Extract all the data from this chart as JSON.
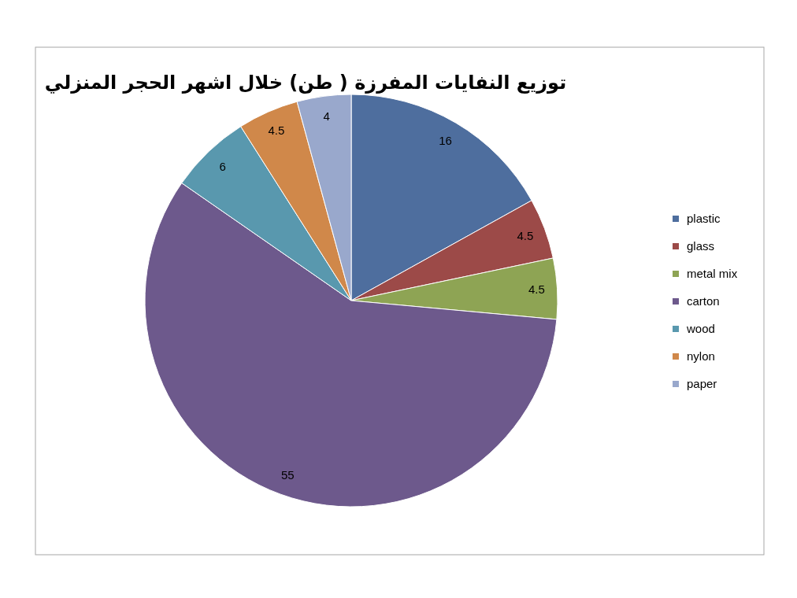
{
  "chart_data": {
    "type": "pie",
    "title": "توزيع النفايات المفرزة ( طن) خلال اشهر الحجر المنزلي",
    "categories": [
      "plastic",
      "glass",
      "metal mix",
      "carton",
      "wood",
      "nylon",
      "paper"
    ],
    "values": [
      16,
      4.5,
      4.5,
      55,
      6,
      4.5,
      4
    ],
    "colors": [
      "#4e6e9e",
      "#9c4a48",
      "#8ea454",
      "#6d598c",
      "#5998ae",
      "#d0884a",
      "#99a8cc"
    ],
    "data_labels": true,
    "legend": "right"
  }
}
